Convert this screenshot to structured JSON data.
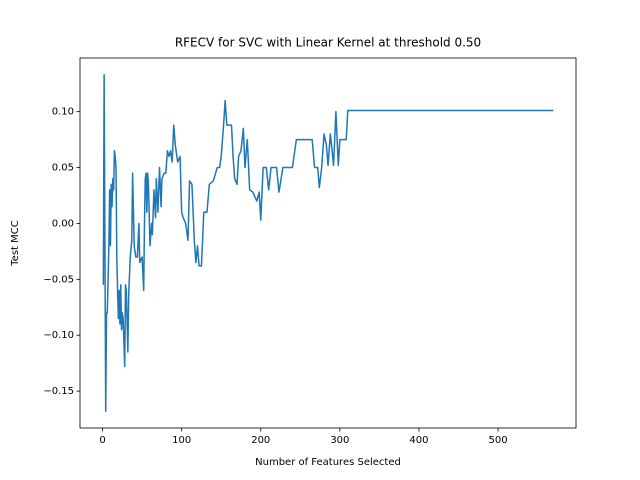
{
  "chart_data": {
    "type": "line",
    "title": "RFECV for SVC with Linear Kernel at threshold 0.50",
    "x_label": "Number of Features Selected",
    "y_label": "Test MCC",
    "xlim": [
      -28.5,
      598.5
    ],
    "ylim": [
      -0.183,
      0.148
    ],
    "xticks": [
      0,
      100,
      200,
      300,
      400,
      500
    ],
    "yticks": [
      {
        "value": -0.15,
        "label": "−0.15"
      },
      {
        "value": -0.1,
        "label": "−0.10"
      },
      {
        "value": -0.05,
        "label": "−0.05"
      },
      {
        "value": 0,
        "label": "0.00"
      },
      {
        "value": 0.05,
        "label": "0.05"
      },
      {
        "value": 0.1,
        "label": "0.10"
      }
    ],
    "series": [
      {
        "color": "#1f77b4",
        "x": [
          1,
          2,
          3,
          4,
          5,
          6,
          8,
          9,
          10,
          11,
          12,
          13,
          14,
          15,
          16,
          17,
          18,
          19,
          20,
          21,
          22,
          23,
          24,
          25,
          26,
          28,
          29,
          30,
          32,
          33,
          35,
          37,
          38,
          40,
          42,
          44,
          46,
          47,
          50,
          52,
          53,
          54,
          55,
          56,
          57,
          58,
          60,
          62,
          63,
          65,
          67,
          68,
          70,
          72,
          74,
          75,
          78,
          80,
          82,
          84,
          86,
          88,
          90,
          92,
          95,
          98,
          100,
          102,
          105,
          108,
          110,
          113,
          116,
          118,
          120,
          122,
          125,
          128,
          132,
          135,
          140,
          145,
          148,
          150,
          153,
          155,
          157,
          163,
          165,
          167,
          170,
          172,
          175,
          178,
          180,
          183,
          186,
          190,
          195,
          198,
          200,
          203,
          207,
          210,
          213,
          220,
          223,
          228,
          235,
          240,
          245,
          265,
          268,
          272,
          274,
          277,
          280,
          283,
          285,
          288,
          292,
          295,
          298,
          300,
          303,
          308,
          310,
          570
        ],
        "values": [
          -0.055,
          0.133,
          -0.02,
          -0.168,
          -0.08,
          -0.08,
          -0.02,
          0.03,
          -0.02,
          0.035,
          0.015,
          0.04,
          0.03,
          0.065,
          0.06,
          0.05,
          -0.03,
          -0.06,
          -0.085,
          -0.06,
          -0.09,
          -0.055,
          -0.095,
          -0.08,
          -0.085,
          -0.128,
          -0.055,
          -0.06,
          -0.115,
          -0.065,
          -0.03,
          -0.015,
          0.045,
          -0.02,
          -0.03,
          -0.03,
          0.0,
          -0.035,
          -0.03,
          -0.06,
          0.0,
          0.04,
          0.045,
          0.01,
          0.045,
          0.035,
          -0.02,
          0.0,
          -0.01,
          0.03,
          0.005,
          0.04,
          0.01,
          0.05,
          0.015,
          0.04,
          0.045,
          0.045,
          0.065,
          0.06,
          0.065,
          0.055,
          0.088,
          0.07,
          0.055,
          0.06,
          0.01,
          0.005,
          0.0,
          -0.015,
          0.038,
          0.035,
          -0.015,
          -0.035,
          -0.02,
          -0.038,
          -0.038,
          0.01,
          0.01,
          0.035,
          0.038,
          0.05,
          0.05,
          0.06,
          0.088,
          0.11,
          0.088,
          0.088,
          0.06,
          0.04,
          0.035,
          0.06,
          0.065,
          0.085,
          0.05,
          0.075,
          0.03,
          0.028,
          0.02,
          0.028,
          0.003,
          0.05,
          0.05,
          0.03,
          0.05,
          0.05,
          0.028,
          0.05,
          0.05,
          0.05,
          0.075,
          0.075,
          0.05,
          0.05,
          0.032,
          0.05,
          0.08,
          0.07,
          0.052,
          0.08,
          0.052,
          0.1,
          0.052,
          0.075,
          0.075,
          0.075,
          0.101,
          0.101
        ]
      }
    ]
  }
}
